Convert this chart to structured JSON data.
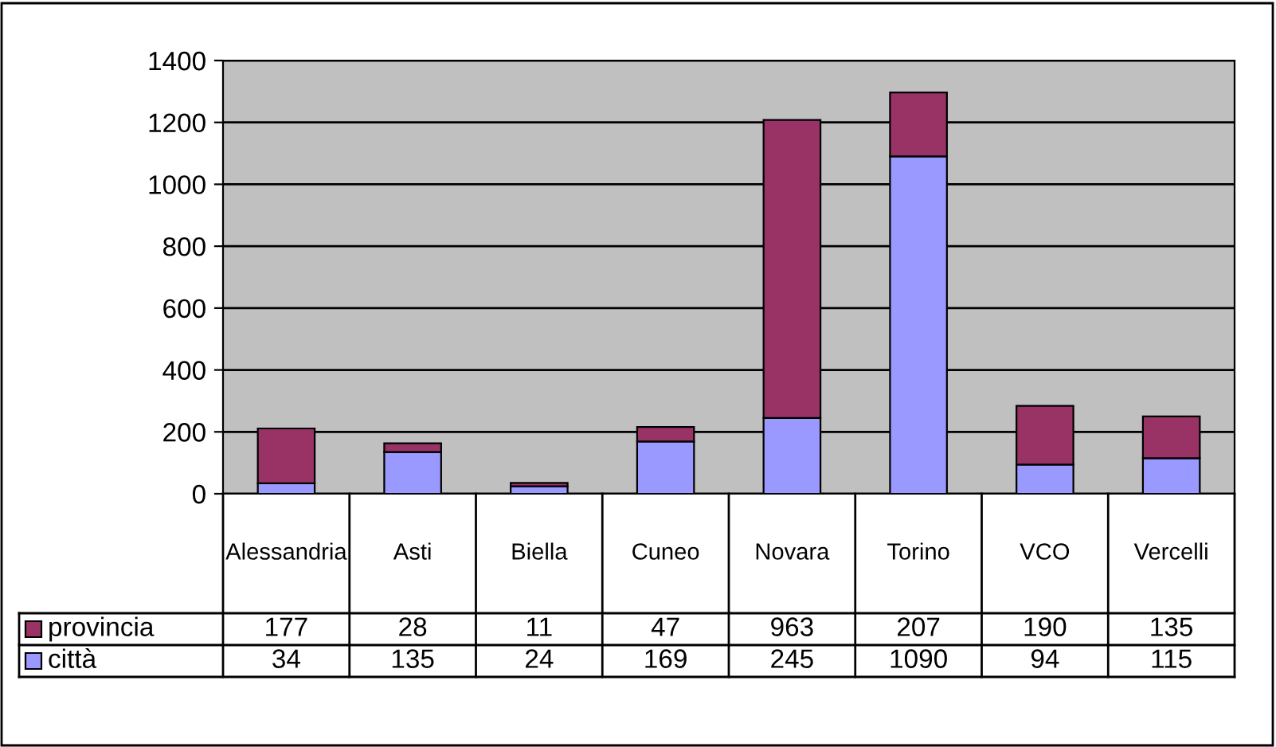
{
  "chart_data": {
    "type": "bar",
    "stacked": true,
    "categories": [
      "Alessandria",
      "Asti",
      "Biella",
      "Cuneo",
      "Novara",
      "Torino",
      "VCO",
      "Vercelli"
    ],
    "series": [
      {
        "name": "città",
        "color": "#9999ff",
        "values": [
          34,
          135,
          24,
          169,
          245,
          1090,
          94,
          115
        ]
      },
      {
        "name": "provincia",
        "color": "#993366",
        "values": [
          177,
          28,
          11,
          47,
          963,
          207,
          190,
          135
        ]
      }
    ],
    "ylim": [
      0,
      1400
    ],
    "yticks": [
      0,
      200,
      400,
      600,
      800,
      1000,
      1200,
      1400
    ],
    "grid": "y",
    "legend": "bottom",
    "data_labels": true
  }
}
